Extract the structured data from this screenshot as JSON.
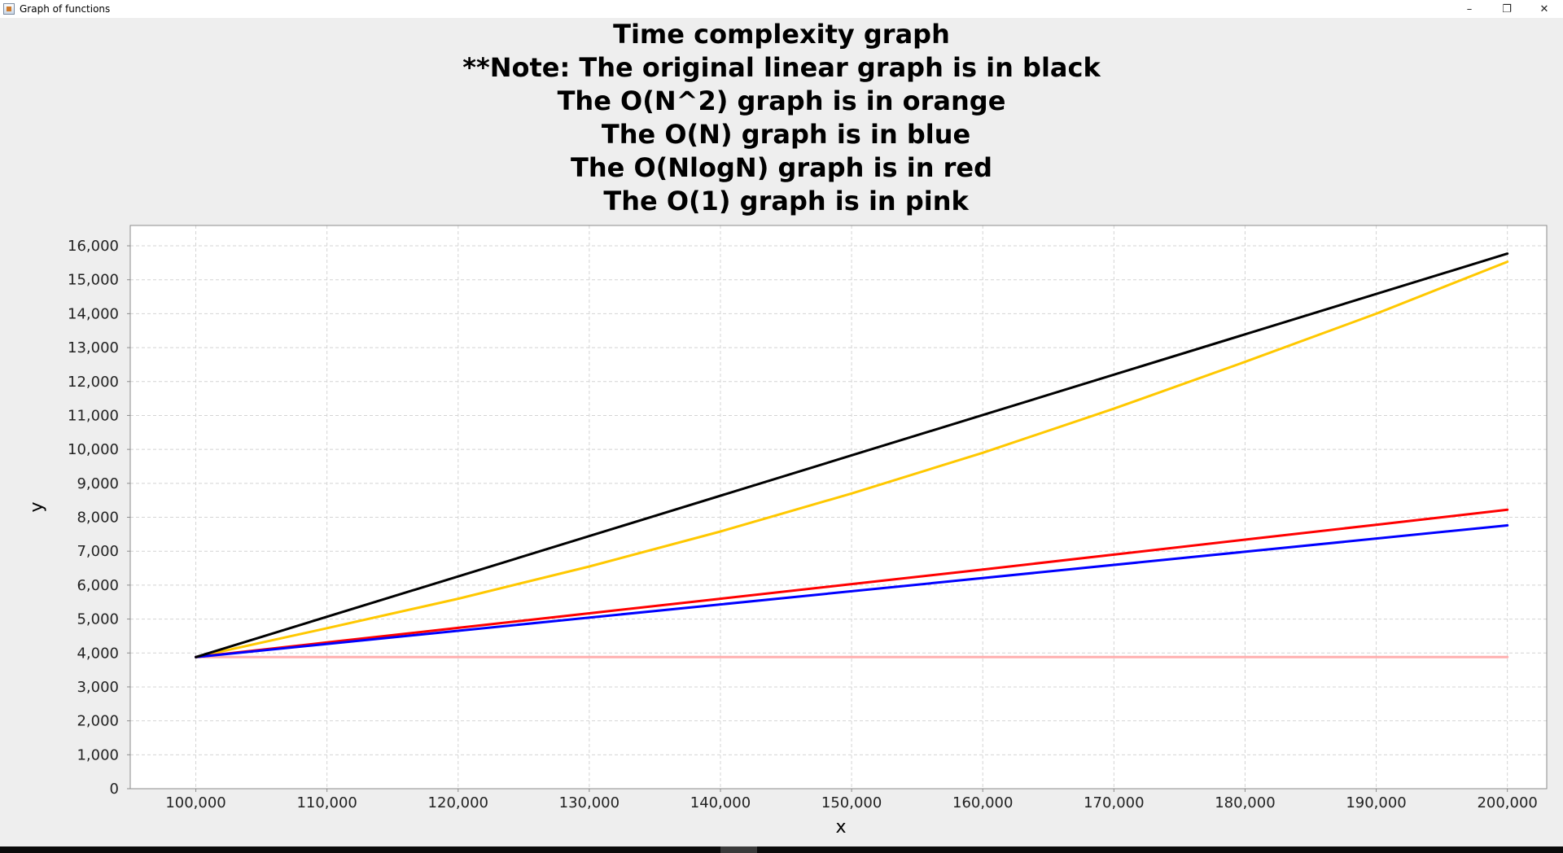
{
  "window": {
    "title": "Graph of functions",
    "minimize_glyph": "–",
    "restore_glyph": "❐",
    "close_glyph": "✕"
  },
  "chart_data": {
    "type": "line",
    "title_lines": [
      "Time complexity graph",
      "**Note: The original linear graph is in black",
      "The O(N^2) graph is in orange",
      " The O(N) graph is in blue",
      "The O(NlogN) graph is in red",
      " The O(1) graph is in pink"
    ],
    "xlabel": "x",
    "ylabel": "y",
    "xlim": [
      95000,
      203000
    ],
    "ylim": [
      0,
      16600
    ],
    "xticks": [
      100000,
      110000,
      120000,
      130000,
      140000,
      150000,
      160000,
      170000,
      180000,
      190000,
      200000
    ],
    "xtick_labels": [
      "100,000",
      "110,000",
      "120,000",
      "130,000",
      "140,000",
      "150,000",
      "160,000",
      "170,000",
      "180,000",
      "190,000",
      "200,000"
    ],
    "yticks": [
      0,
      1000,
      2000,
      3000,
      4000,
      5000,
      6000,
      7000,
      8000,
      9000,
      10000,
      11000,
      12000,
      13000,
      14000,
      15000,
      16000
    ],
    "ytick_labels": [
      "0",
      "1,000",
      "2,000",
      "3,000",
      "4,000",
      "5,000",
      "6,000",
      "7,000",
      "8,000",
      "9,000",
      "10,000",
      "11,000",
      "12,000",
      "13,000",
      "14,000",
      "15,000",
      "16,000"
    ],
    "grid": true,
    "legend": false,
    "series": [
      {
        "color": "#000000",
        "x": [
          100000,
          200000
        ],
        "y": [
          3880,
          15770
        ]
      },
      {
        "color": "#ffc800",
        "x": [
          100000,
          110000,
          120000,
          130000,
          140000,
          150000,
          160000,
          170000,
          180000,
          190000,
          200000
        ],
        "y": [
          3880,
          4730,
          5600,
          6550,
          7580,
          8700,
          9900,
          11200,
          12580,
          14000,
          15530
        ]
      },
      {
        "color": "#ff0000",
        "x": [
          100000,
          110000,
          120000,
          130000,
          140000,
          150000,
          160000,
          170000,
          180000,
          190000,
          200000
        ],
        "y": [
          3880,
          4310,
          4740,
          5170,
          5600,
          6030,
          6460,
          6900,
          7340,
          7780,
          8220
        ]
      },
      {
        "color": "#0000ff",
        "x": [
          100000,
          200000
        ],
        "y": [
          3880,
          7760
        ]
      },
      {
        "color": "#ffafaf",
        "x": [
          100000,
          200000
        ],
        "y": [
          3880,
          3880
        ]
      }
    ]
  }
}
